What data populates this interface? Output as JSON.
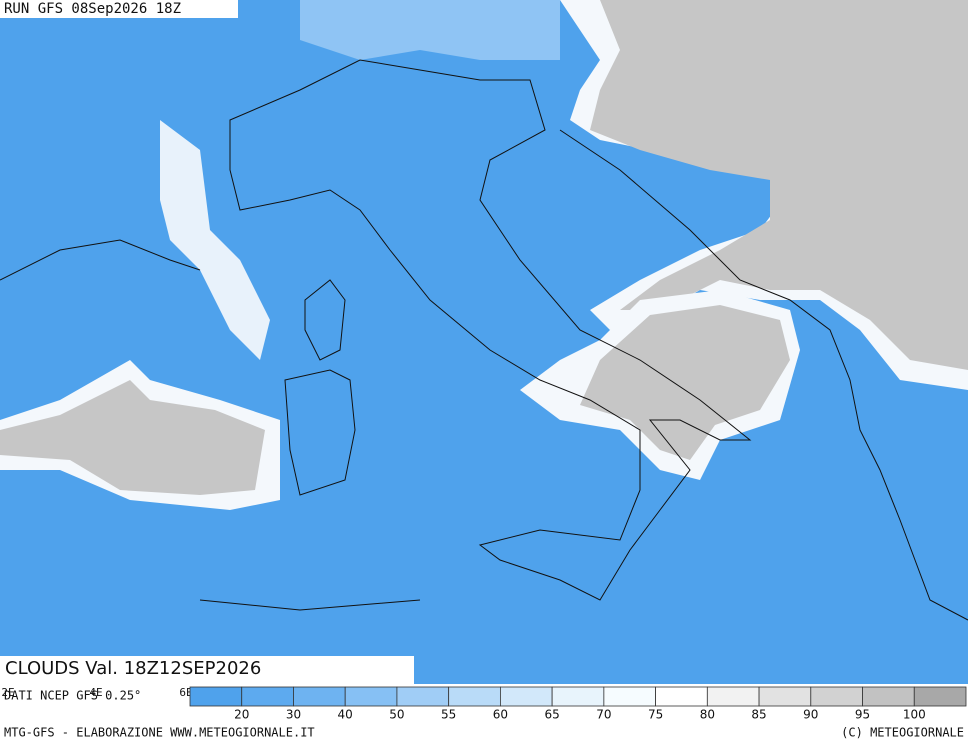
{
  "header": {
    "run": "RUN GFS 08Sep2026 18Z",
    "field": "CLOUDS Val. 18Z12SEP2026",
    "source": "DATI NCEP GFS 0.25°"
  },
  "lon_labels": [
    "2E",
    "4E",
    "6E"
  ],
  "legend": {
    "levels": [
      20,
      30,
      40,
      50,
      55,
      60,
      65,
      70,
      75,
      80,
      85,
      90,
      95,
      100
    ],
    "colors": [
      "#4fa2ec",
      "#5daaef",
      "#6eb3f1",
      "#86c0f4",
      "#a0cdf6",
      "#b9dbf8",
      "#d2e8fa",
      "#e8f4fc",
      "#f6fcff",
      "#ffffff",
      "#f2f2f2",
      "#e2e2e2",
      "#d2d2d2",
      "#c2c2c2",
      "#a8a8a8"
    ]
  },
  "footer": {
    "left": "MTG-GFS - ELABORAZIONE WWW.METEOGIORNALE.IT",
    "right": "(C) METEOGIORNALE"
  }
}
